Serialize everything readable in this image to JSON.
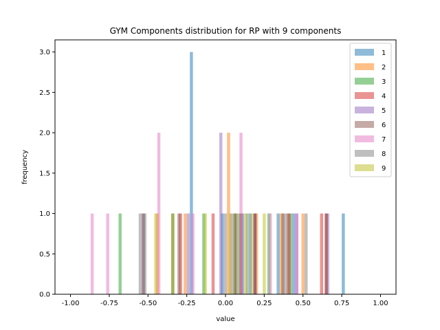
{
  "chart_data": {
    "type": "bar",
    "title": "GYM Components distribution for RP with 9 components",
    "xlabel": "value",
    "ylabel": "frequency",
    "xlim": [
      -1.1,
      1.1
    ],
    "ylim": [
      0,
      3.15
    ],
    "xticks": [
      "-1.00",
      "-0.75",
      "-0.50",
      "-0.25",
      "0.00",
      "0.25",
      "0.50",
      "0.75",
      "1.00"
    ],
    "yticks": [
      "0.0",
      "0.5",
      "1.0",
      "1.5",
      "2.0",
      "2.5",
      "3.0"
    ],
    "bin_width": 0.02,
    "alpha": 0.5,
    "legend_position": "upper right",
    "grid": false,
    "series": [
      {
        "name": "1",
        "color": "#1f77b4",
        "bars": [
          [
            -0.22,
            3
          ],
          [
            -0.02,
            1
          ],
          [
            0.11,
            1
          ],
          [
            0.16,
            1
          ],
          [
            0.34,
            1
          ],
          [
            0.44,
            1
          ],
          [
            0.76,
            1
          ]
        ]
      },
      {
        "name": "2",
        "color": "#ff7f0e",
        "bars": [
          [
            0.02,
            2
          ],
          [
            -0.44,
            1
          ],
          [
            -0.26,
            1
          ],
          [
            0.06,
            1
          ],
          [
            0.2,
            1
          ],
          [
            0.36,
            1
          ],
          [
            0.5,
            1
          ]
        ]
      },
      {
        "name": "3",
        "color": "#2ca02c",
        "bars": [
          [
            -0.68,
            1
          ],
          [
            -0.34,
            1
          ],
          [
            -0.14,
            1
          ],
          [
            0.06,
            1
          ],
          [
            0.09,
            1
          ],
          [
            0.28,
            1
          ],
          [
            0.42,
            1
          ]
        ]
      },
      {
        "name": "4",
        "color": "#d62728",
        "bars": [
          [
            -0.29,
            1
          ],
          [
            -0.08,
            1
          ],
          [
            0.1,
            1
          ],
          [
            0.19,
            1
          ],
          [
            0.41,
            1
          ],
          [
            0.62,
            1
          ],
          [
            0.65,
            1
          ]
        ]
      },
      {
        "name": "5",
        "color": "#9467bd",
        "bars": [
          [
            -0.03,
            2
          ],
          [
            -0.53,
            1
          ],
          [
            -0.24,
            1
          ],
          [
            0.04,
            1
          ],
          [
            0.19,
            1
          ],
          [
            0.46,
            1
          ],
          [
            0.66,
            1
          ]
        ]
      },
      {
        "name": "6",
        "color": "#8c564b",
        "bars": [
          [
            -0.53,
            1
          ],
          [
            -0.3,
            1
          ],
          [
            0.07,
            1
          ],
          [
            0.19,
            1
          ],
          [
            0.37,
            1
          ],
          [
            0.4,
            1
          ],
          [
            0.65,
            1
          ]
        ]
      },
      {
        "name": "7",
        "color": "#e377c2",
        "bars": [
          [
            -0.43,
            2
          ],
          [
            0.1,
            2
          ],
          [
            -0.86,
            1
          ],
          [
            -0.76,
            1
          ],
          [
            -0.21,
            1
          ],
          [
            0.29,
            1
          ],
          [
            0.46,
            1
          ]
        ]
      },
      {
        "name": "8",
        "color": "#7f7f7f",
        "bars": [
          [
            -0.55,
            1
          ],
          [
            -0.52,
            1
          ],
          [
            -0.34,
            1
          ],
          [
            0.0,
            1
          ],
          [
            0.14,
            1
          ],
          [
            0.38,
            1
          ],
          [
            0.52,
            1
          ]
        ]
      },
      {
        "name": "9",
        "color": "#bcbd22",
        "bars": [
          [
            -0.45,
            1
          ],
          [
            -0.34,
            1
          ],
          [
            -0.13,
            1
          ],
          [
            0.03,
            1
          ],
          [
            0.13,
            1
          ],
          [
            0.17,
            1
          ],
          [
            0.25,
            1
          ]
        ]
      }
    ]
  }
}
